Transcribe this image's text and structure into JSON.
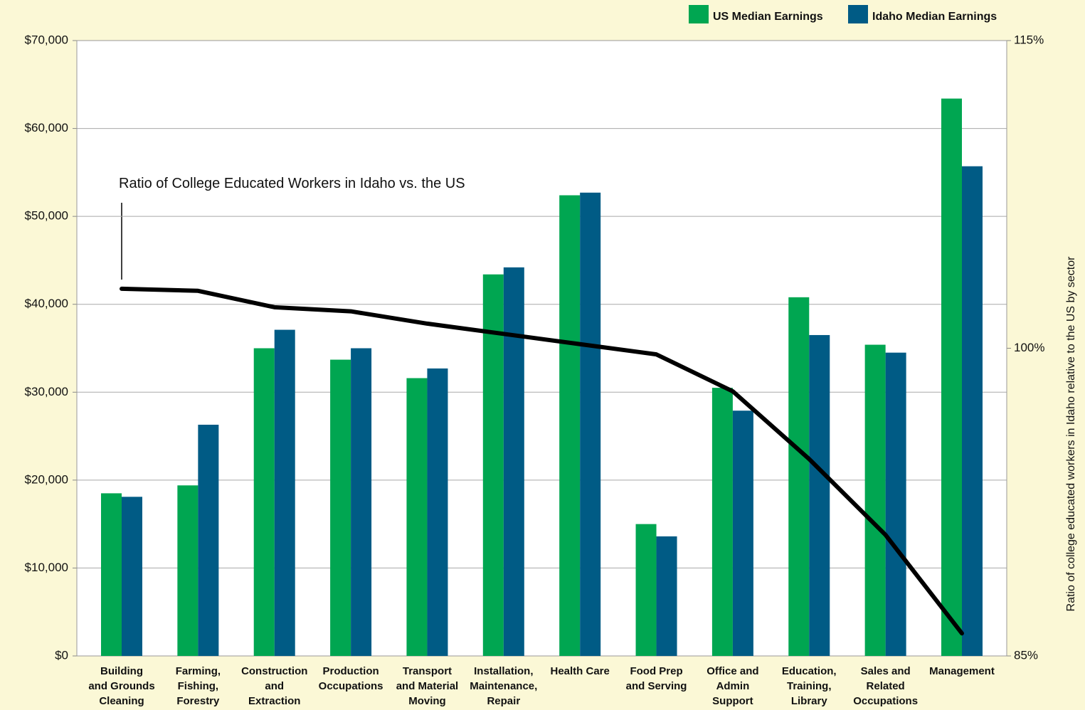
{
  "chart_data": {
    "type": "bar",
    "categories": [
      "Building\nand Grounds\nCleaning",
      "Farming,\nFishing,\nForestry",
      "Construction\nand\nExtraction",
      "Production\nOccupations",
      "Transport\nand Material\nMoving",
      "Installation,\nMaintenance,\nRepair",
      "Health Care",
      "Food Prep\nand Serving",
      "Office and\nAdmin\nSupport",
      "Education,\nTraining,\nLibrary",
      "Sales and\nRelated\nOccupations",
      "Management"
    ],
    "series": [
      {
        "name": "US Median Earnings",
        "color": "#00a651",
        "values": [
          18500,
          19400,
          35000,
          33700,
          31600,
          43400,
          52400,
          15000,
          30500,
          40800,
          35400,
          63400
        ]
      },
      {
        "name": "Idaho Median Earnings",
        "color": "#005b85",
        "values": [
          18100,
          26300,
          37100,
          35000,
          32700,
          44200,
          52700,
          13600,
          27900,
          36500,
          34500,
          55700
        ]
      },
      {
        "type": "line",
        "axis": "y2",
        "color": "#000000",
        "values": [
          102.9,
          102.8,
          102.0,
          101.8,
          101.2,
          100.7,
          100.2,
          99.7,
          97.9,
          94.6,
          90.9,
          86.1
        ]
      }
    ],
    "annotation": "Ratio of College Educated Workers in Idaho vs. the US",
    "y2label": "Ratio of college educated workers in Idaho relative to the US by sector",
    "ylim": [
      0,
      70000
    ],
    "yticks": [
      {
        "value": 0,
        "label": "$0"
      },
      {
        "value": 10000,
        "label": "$10,000"
      },
      {
        "value": 20000,
        "label": "$20,000"
      },
      {
        "value": 30000,
        "label": "$30,000"
      },
      {
        "value": 40000,
        "label": "$40,000"
      },
      {
        "value": 50000,
        "label": "$50,000"
      },
      {
        "value": 60000,
        "label": "$60,000"
      },
      {
        "value": 70000,
        "label": "$70,000"
      }
    ],
    "y2lim": [
      85,
      115
    ],
    "y2ticks": [
      {
        "value": 85,
        "label": "85%"
      },
      {
        "value": 100,
        "label": "100%"
      },
      {
        "value": 115,
        "label": "115%"
      }
    ],
    "grid": true,
    "legend": "top-right"
  }
}
